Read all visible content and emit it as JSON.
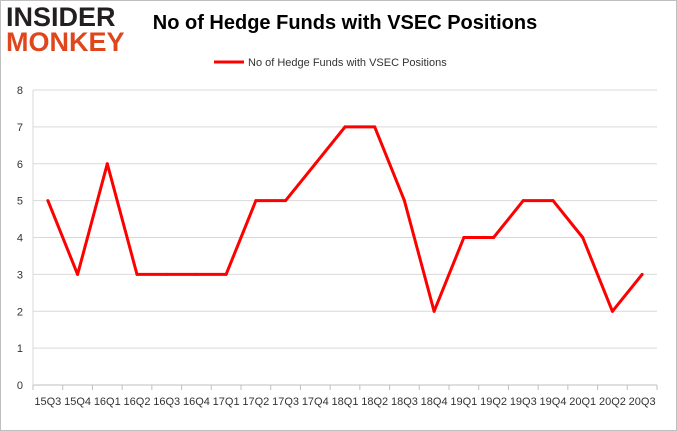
{
  "logo": {
    "top": "INSIDER",
    "bottom": "MONKEY"
  },
  "colors": {
    "line": "#ff0000",
    "grid": "#d9d9d9",
    "logo_dark": "#231f20",
    "logo_accent": "#e0461b"
  },
  "chart_data": {
    "type": "line",
    "title": "No of Hedge Funds with VSEC Positions",
    "xlabel": "",
    "ylabel": "",
    "categories": [
      "15Q3",
      "15Q4",
      "16Q1",
      "16Q2",
      "16Q3",
      "16Q4",
      "17Q1",
      "17Q2",
      "17Q3",
      "17Q4",
      "18Q1",
      "18Q2",
      "18Q3",
      "18Q4",
      "19Q1",
      "19Q2",
      "19Q3",
      "19Q4",
      "20Q1",
      "20Q2",
      "20Q3"
    ],
    "series": [
      {
        "name": "No of Hedge Funds with VSEC Positions",
        "values": [
          5,
          3,
          6,
          3,
          3,
          3,
          3,
          5,
          5,
          6,
          7,
          7,
          5,
          2,
          4,
          4,
          5,
          5,
          4,
          2,
          3
        ]
      }
    ],
    "ylim": [
      0,
      8
    ],
    "yticks": [
      "0",
      "1",
      "2",
      "3",
      "4",
      "5",
      "6",
      "7",
      "8"
    ],
    "grid": true,
    "legend_position": "top"
  }
}
